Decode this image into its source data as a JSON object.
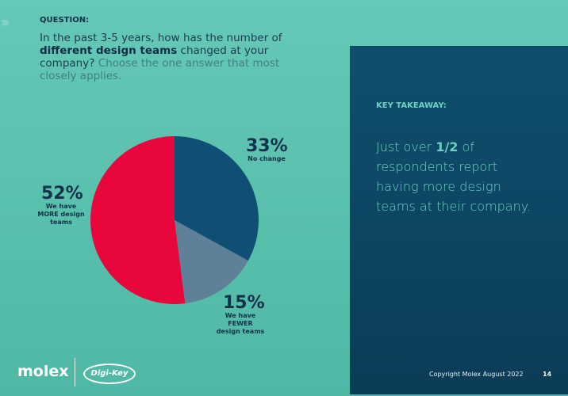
{
  "question": {
    "label": "QUESTION:",
    "text_pre": "In the past 3-5 years, how has the number of ",
    "text_bold": "different design teams",
    "text_mid": " changed at your company? ",
    "text_light": "Choose the one answer that most closely applies."
  },
  "takeaway": {
    "label": "KEY TAKEAWAY:",
    "pre": "Just over ",
    "bold": "1/2",
    "post": " of respondents report having more design teams at their company."
  },
  "footer": {
    "logo": "molex",
    "partner_logo": "Digi-Key",
    "copyright": "Copyright Molex August 2022",
    "page": "14"
  },
  "chart_data": {
    "type": "pie",
    "start": "top",
    "direction": "clockwise",
    "slices": [
      {
        "label": "No change",
        "value": 33,
        "display": "33%",
        "color": "#0f4f74"
      },
      {
        "label": "We have FEWER design teams",
        "value": 15,
        "display": "15%",
        "color": "#5e8199"
      },
      {
        "label": "We have MORE design teams",
        "value": 52,
        "display": "52%",
        "color": "#e8063c"
      }
    ]
  }
}
